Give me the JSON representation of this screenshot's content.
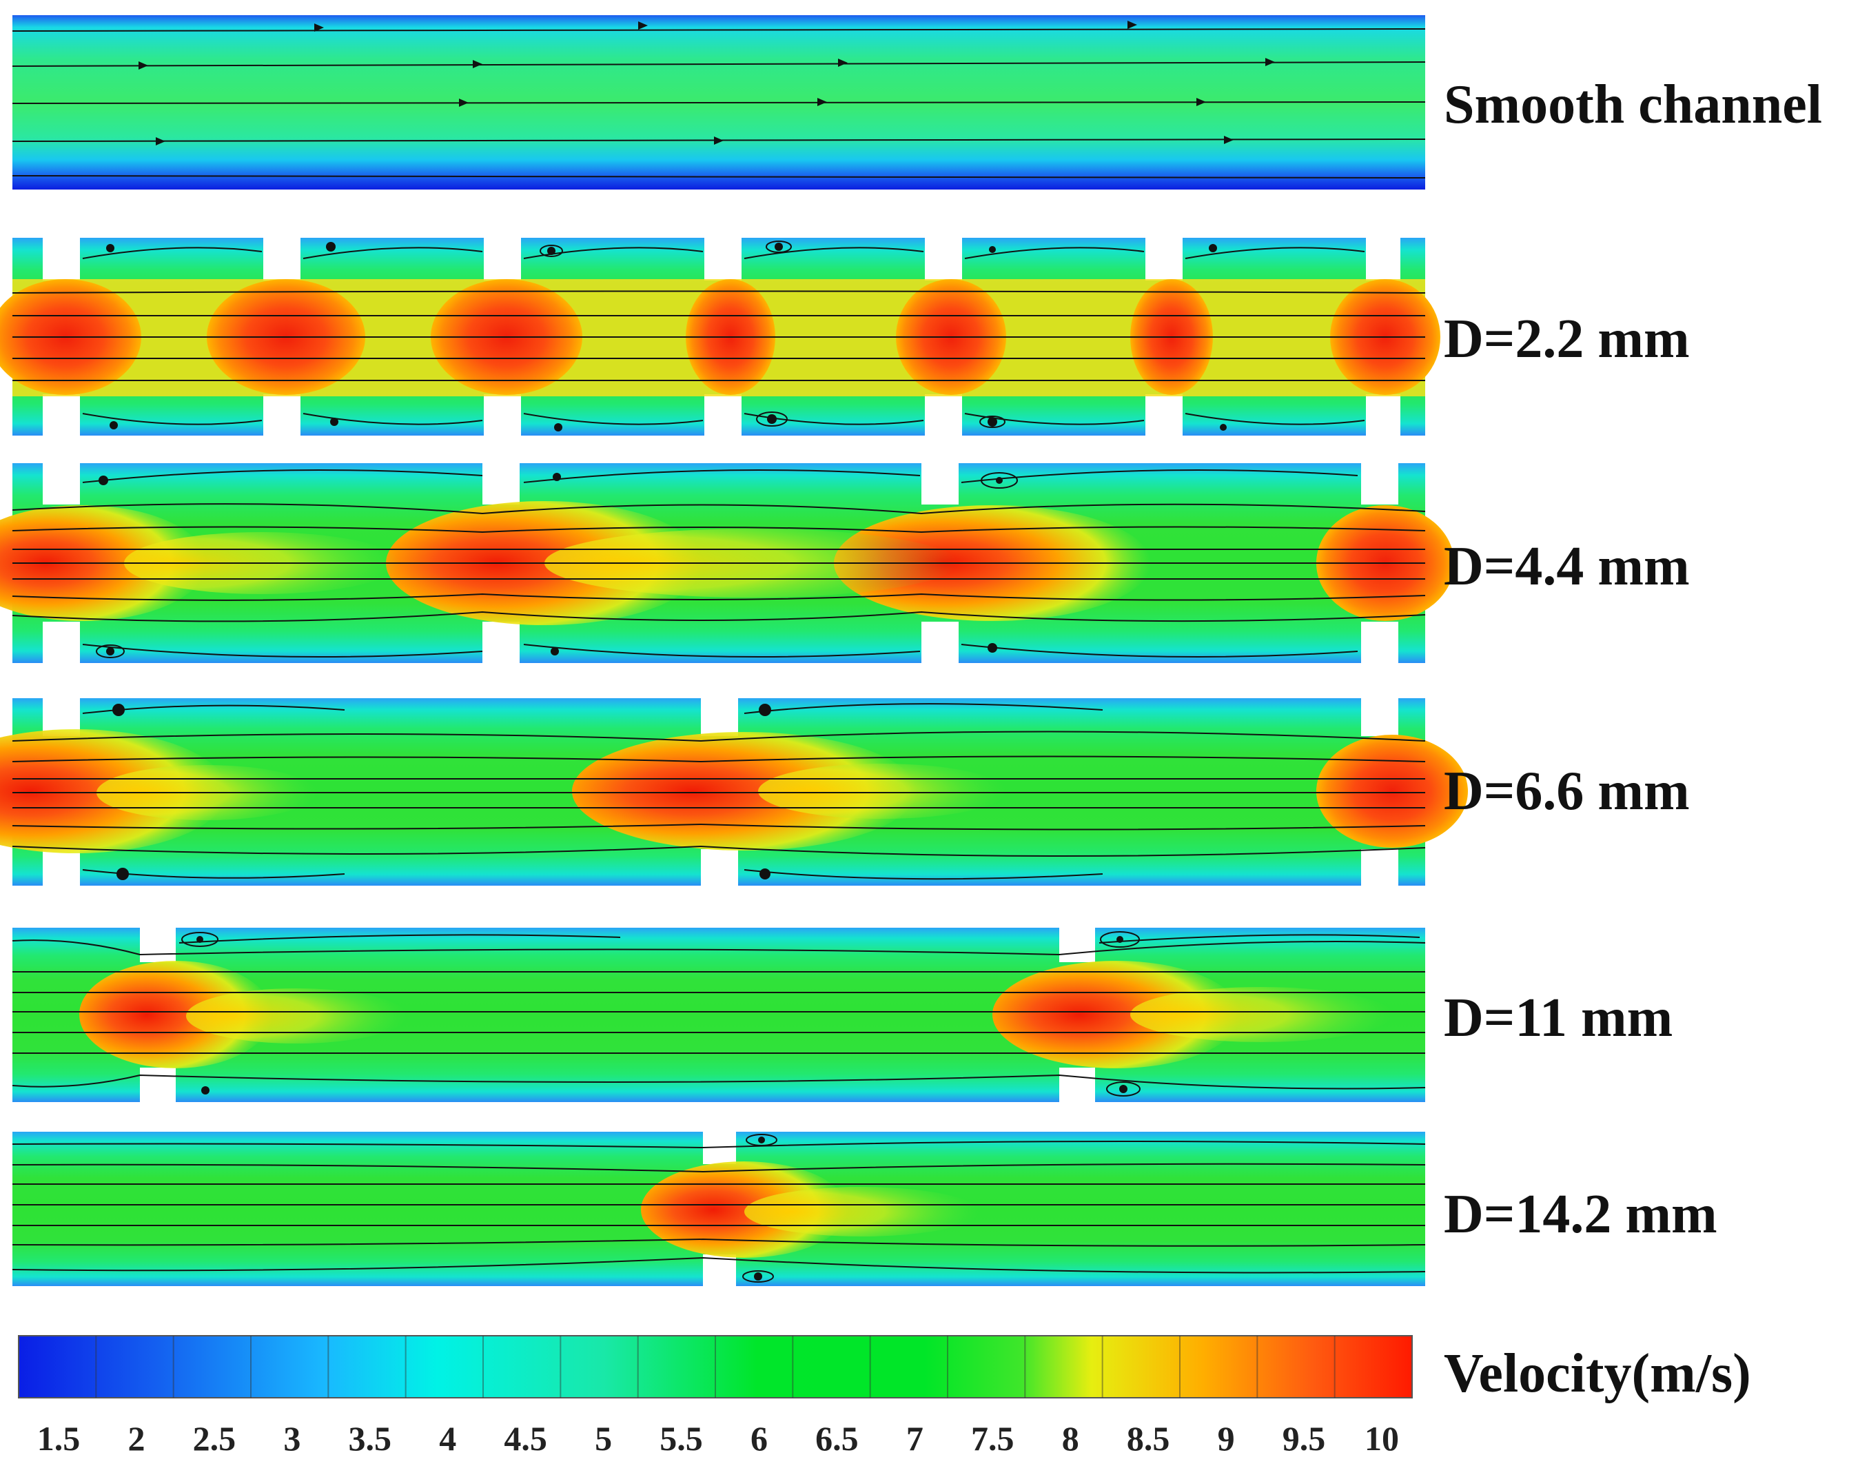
{
  "panels": [
    {
      "label": "Smooth channel",
      "D_mm": null
    },
    {
      "label": "D=2.2 mm",
      "D_mm": 2.2
    },
    {
      "label": "D=4.4 mm",
      "D_mm": 4.4
    },
    {
      "label": "D=6.6 mm",
      "D_mm": 6.6
    },
    {
      "label": "D=11 mm",
      "D_mm": 11
    },
    {
      "label": "D=14.2 mm",
      "D_mm": 14.2
    }
  ],
  "legend": {
    "title": "Velocity(m/s)",
    "min": 1.5,
    "max": 10,
    "ticks": [
      "1.5",
      "2",
      "2.5",
      "3",
      "3.5",
      "4",
      "4.5",
      "5",
      "5.5",
      "6",
      "6.5",
      "7",
      "7.5",
      "8",
      "8.5",
      "9",
      "9.5",
      "10"
    ]
  },
  "colors": {
    "low": "#0a1ee6",
    "mid_low": "#19b9ff",
    "cyan": "#00f2e6",
    "mid": "#00e62a",
    "yellow": "#e6ee10",
    "orange": "#ff9b00",
    "high": "#ff1a00"
  }
}
